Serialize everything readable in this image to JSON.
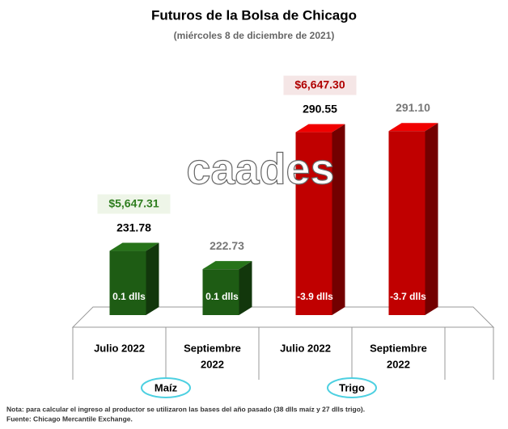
{
  "chart_data": {
    "type": "bar3d",
    "title": "Futuros de la Bolsa de Chicago",
    "subtitle": "(miércoles 8 de diciembre de 2021)",
    "categories": [
      [
        "Julio 2022"
      ],
      [
        "Septiembre",
        "2022"
      ],
      [
        "Julio 2022"
      ],
      [
        "Septiembre",
        "2022"
      ]
    ],
    "values": [
      231.78,
      222.73,
      290.55,
      291.1
    ],
    "value_labels": [
      "231.78",
      "222.73",
      "290.55",
      "291.10"
    ],
    "value_label_colors": [
      "#000000",
      "#777777",
      "#000000",
      "#777777"
    ],
    "bar_labels": [
      "0.1 dlls",
      "0.1 dlls",
      "-3.9 dlls",
      "-3.7 dlls"
    ],
    "colors": [
      "#1e5c14",
      "#1e5c14",
      "#c00000",
      "#c00000"
    ],
    "groups": [
      {
        "name": "Maíz",
        "price": {
          "value": 5647.31,
          "label": "$5,647.31"
        },
        "price_color": "#2e7d1e",
        "members": [
          0,
          1
        ]
      },
      {
        "name": "Trigo",
        "price": {
          "value": 6647.3,
          "label": "$6,647.30"
        },
        "price_color": "#b00000",
        "members": [
          2,
          3
        ]
      }
    ],
    "ylim": [
      200,
      300
    ],
    "watermark": "caades",
    "notes": [
      "Nota: para calcular el ingreso al productor se utilizaron las bases del año pasado (38 dlls maíz y 27 dlls trigo).",
      "Fuente: Chicago Mercantile Exchange."
    ]
  }
}
